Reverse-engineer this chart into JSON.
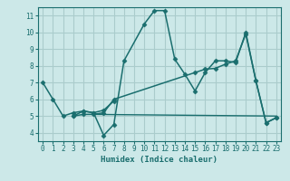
{
  "xlabel": "Humidex (Indice chaleur)",
  "background_color": "#cce8e8",
  "grid_color": "#aacccc",
  "line_color": "#1a6e6e",
  "xlim": [
    -0.5,
    23.5
  ],
  "ylim": [
    3.5,
    11.5
  ],
  "yticks": [
    4,
    5,
    6,
    7,
    8,
    9,
    10,
    11
  ],
  "xticks": [
    0,
    1,
    2,
    3,
    4,
    5,
    6,
    7,
    8,
    9,
    10,
    11,
    12,
    13,
    14,
    15,
    16,
    17,
    18,
    19,
    20,
    21,
    22,
    23
  ],
  "series": [
    {
      "x": [
        0,
        1,
        2,
        3,
        4,
        5,
        6,
        7,
        8,
        10,
        11,
        12,
        13,
        14,
        15,
        16,
        17,
        18,
        19,
        20,
        21,
        22,
        23
      ],
      "y": [
        7.0,
        6.0,
        5.0,
        5.2,
        5.3,
        5.2,
        3.85,
        4.5,
        8.3,
        10.5,
        11.3,
        11.3,
        8.4,
        7.5,
        6.5,
        7.6,
        8.3,
        8.3,
        8.2,
        10.0,
        7.1,
        4.6,
        4.9
      ],
      "marker": "D",
      "markersize": 2.5,
      "linewidth": 1.1
    },
    {
      "x": [
        3,
        4,
        5,
        6,
        7
      ],
      "y": [
        5.0,
        5.3,
        5.2,
        5.35,
        5.9
      ],
      "marker": "D",
      "markersize": 2.5,
      "linewidth": 1.1
    },
    {
      "x": [
        3,
        4,
        5,
        6,
        7,
        15,
        16,
        17,
        18,
        19,
        20,
        21,
        22,
        23
      ],
      "y": [
        5.0,
        5.1,
        5.1,
        5.2,
        6.0,
        7.6,
        7.8,
        7.85,
        8.1,
        8.3,
        9.9,
        7.1,
        4.6,
        4.9
      ],
      "marker": "D",
      "markersize": 2.5,
      "linewidth": 1.1
    },
    {
      "x": [
        5,
        23
      ],
      "y": [
        5.1,
        5.0
      ],
      "marker": null,
      "markersize": 0,
      "linewidth": 1.0
    }
  ]
}
